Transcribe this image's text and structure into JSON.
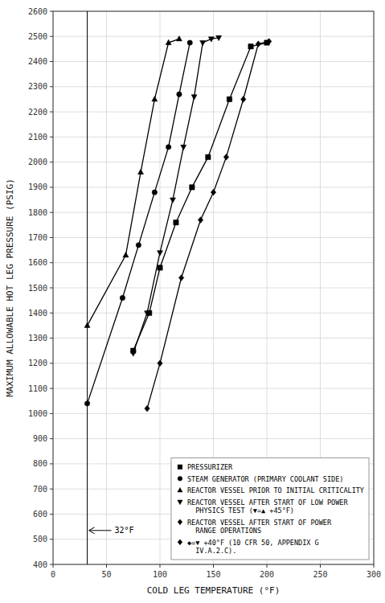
{
  "chart_data": {
    "type": "line",
    "xlabel": "COLD LEG TEMPERATURE (°F)",
    "ylabel": "MAXIMUM ALLOWABLE HOT LEG PRESSURE (PSIG)",
    "xlim": [
      0,
      300
    ],
    "ylim": [
      400,
      2600
    ],
    "xticks": [
      0,
      50,
      100,
      150,
      200,
      250,
      300
    ],
    "yticks": [
      400,
      500,
      600,
      700,
      800,
      900,
      1000,
      1100,
      1200,
      1300,
      1400,
      1500,
      1600,
      1700,
      1800,
      1900,
      2000,
      2100,
      2200,
      2300,
      2400,
      2500,
      2600
    ],
    "grid": true,
    "legend": "lower right",
    "series": [
      {
        "name": "PRESSURIZER",
        "color": "#000000",
        "marker": "square",
        "x": [
          75,
          90,
          100,
          115,
          130,
          145,
          165,
          185,
          200
        ],
        "values": [
          1250,
          1400,
          1580,
          1760,
          1900,
          2020,
          2250,
          2460,
          2475
        ]
      },
      {
        "name": "STEAM GENERATOR (PRIMARY COOLANT SIDE)",
        "color": "#000000",
        "marker": "circle",
        "x": [
          32,
          65,
          80,
          95,
          108,
          118,
          128
        ],
        "values": [
          1040,
          1460,
          1670,
          1880,
          2060,
          2270,
          2475
        ]
      },
      {
        "name": "REACTOR VESSEL PRIOR TO INITIAL CRITICALITY",
        "color": "#000000",
        "marker": "triangle-up",
        "x": [
          32,
          68,
          82,
          95,
          108,
          118
        ],
        "values": [
          1350,
          1630,
          1960,
          2250,
          2475,
          2490
        ]
      },
      {
        "name": "REACTOR VESSEL AFTER START OF LOW POWER\n  PHYSICS TEST (▼=▲ +45°F)",
        "color": "#000000",
        "marker": "triangle-down",
        "x": [
          75,
          88,
          100,
          112,
          122,
          132,
          140,
          148,
          155
        ],
        "values": [
          1240,
          1400,
          1640,
          1850,
          2060,
          2260,
          2475,
          2490,
          2495
        ]
      },
      {
        "name": "REACTOR VESSEL AFTER START OF POWER\n  RANGE OPERATIONS",
        "color": "#000000",
        "marker": "diamond",
        "x": [
          88,
          100,
          120,
          138,
          150,
          162,
          178,
          192,
          202
        ],
        "values": [
          1020,
          1200,
          1540,
          1770,
          1880,
          2020,
          2250,
          2470,
          2480
        ]
      }
    ],
    "annotations": [
      {
        "text": "32°F",
        "x": 32,
        "y": 535
      },
      {
        "text": "◆=▼ +40°F (10 CFR 50, APPENDIX G\n  IV.A.2.C).",
        "marker": "diamond"
      }
    ]
  }
}
